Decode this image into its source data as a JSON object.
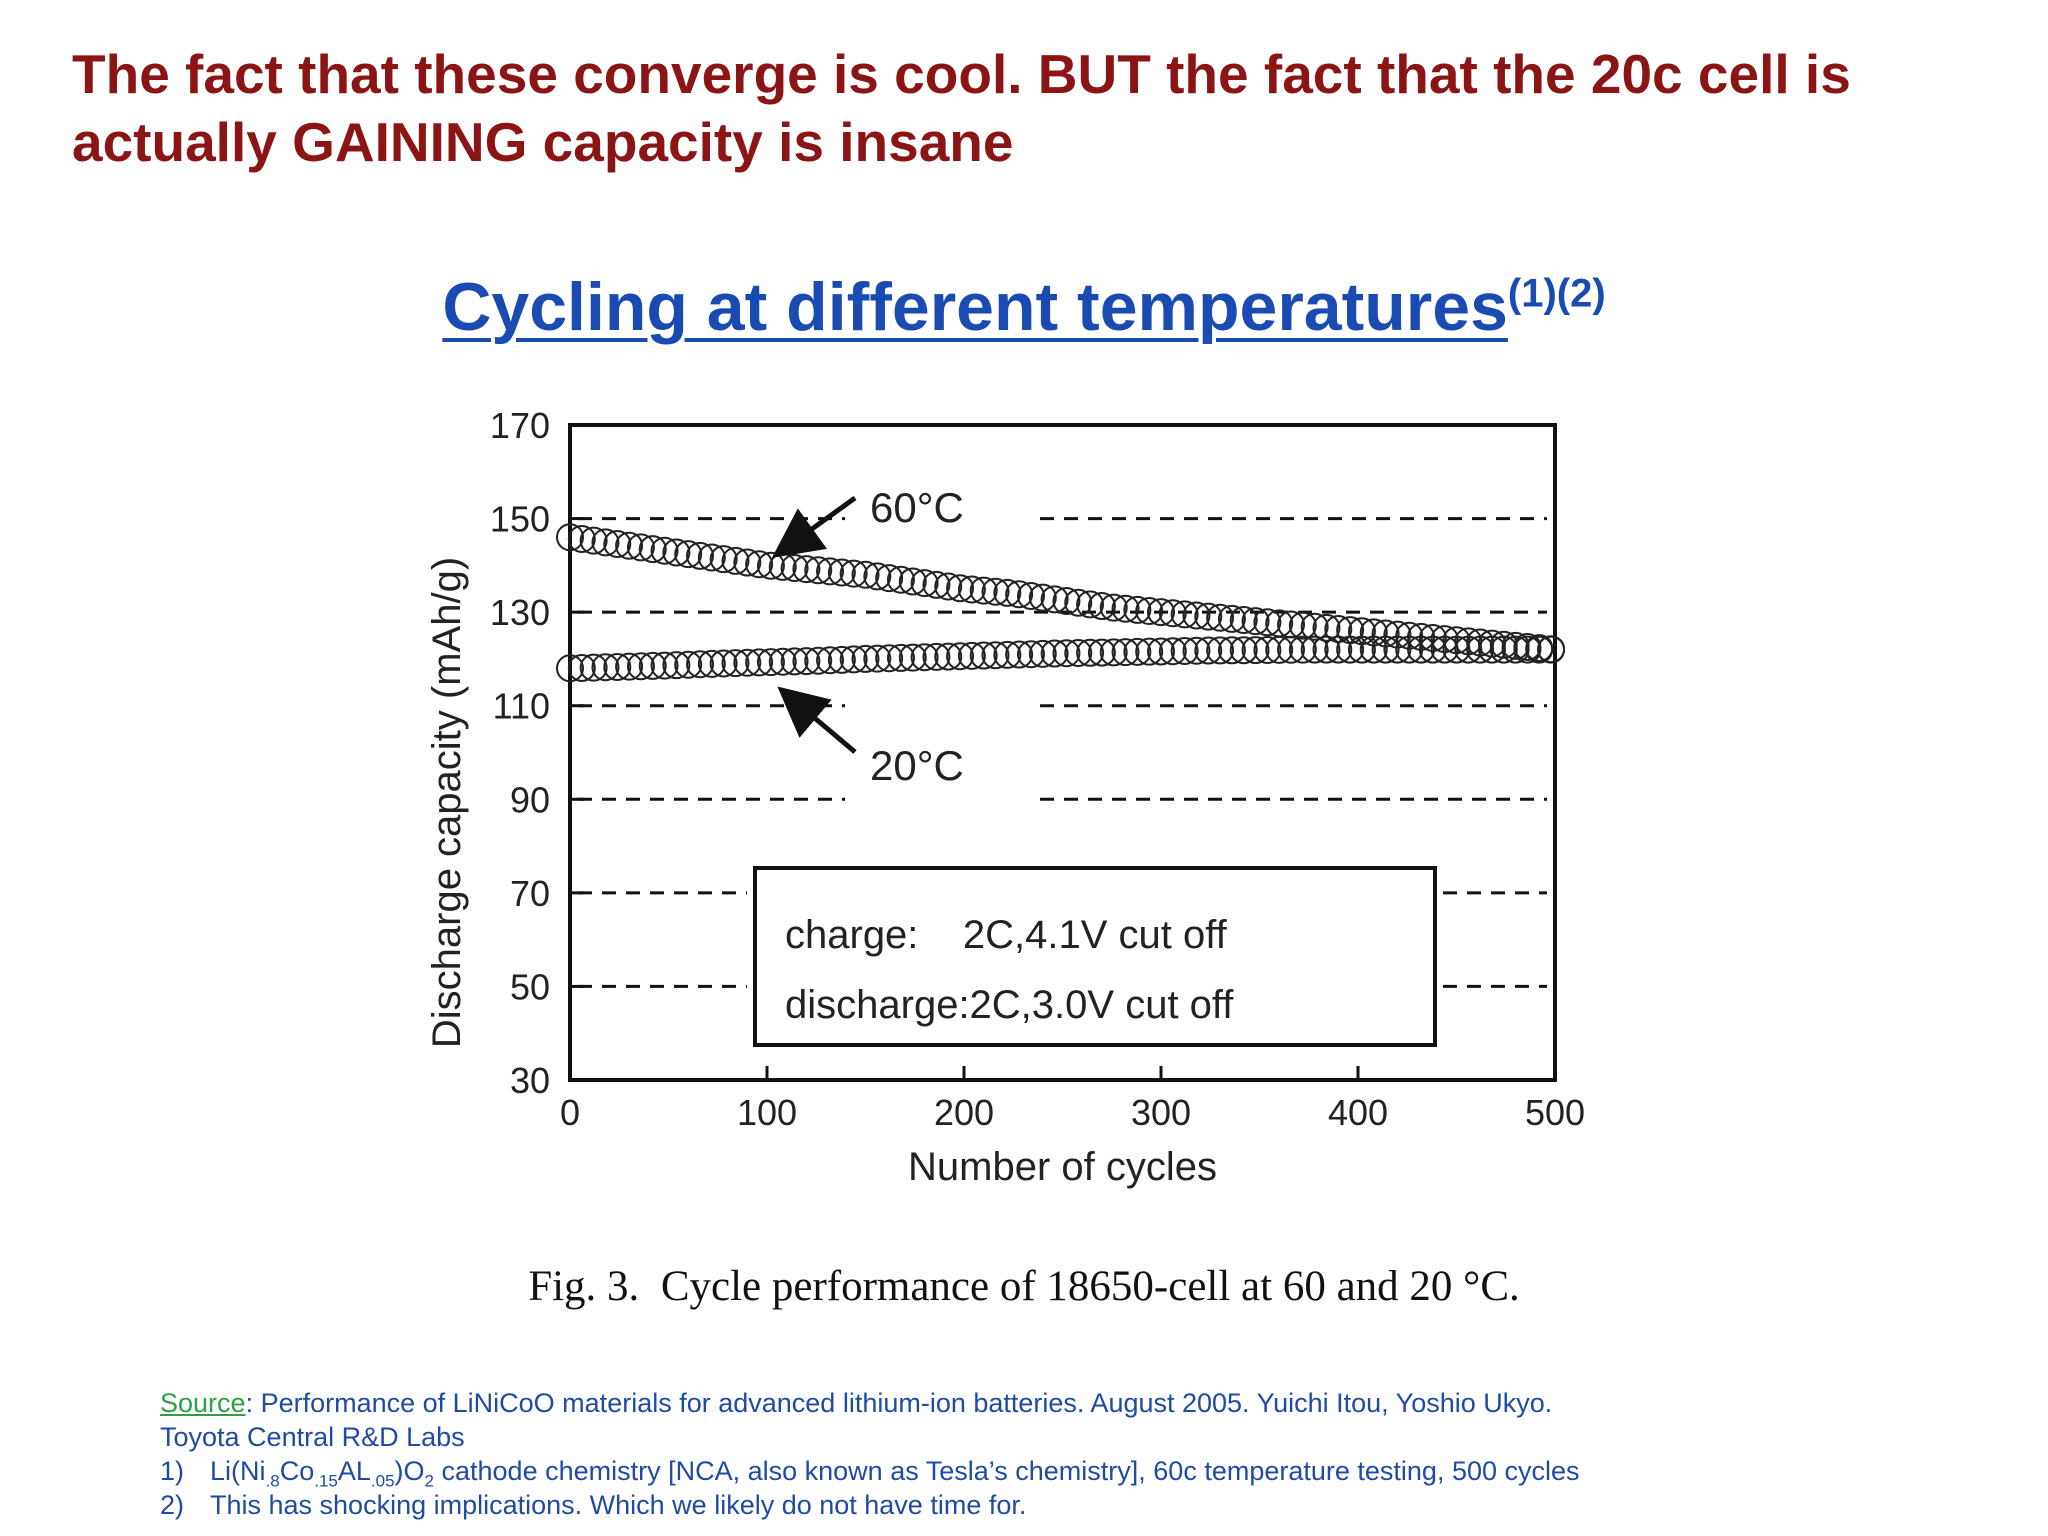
{
  "headline": {
    "line1": "The fact that these converge is cool. BUT the fact that the 20c cell is",
    "line2": "actually GAINING capacity is insane"
  },
  "slide_title": {
    "text": "Cycling at different temperatures",
    "superscript": "(1)(2)"
  },
  "chart_data": {
    "type": "scatter",
    "title": "",
    "xlabel": "Number of cycles",
    "ylabel": "Discharge capacity (mAh/g)",
    "xlim": [
      0,
      500
    ],
    "ylim": [
      30,
      170
    ],
    "xticks": [
      0,
      100,
      200,
      300,
      400,
      500
    ],
    "yticks": [
      30,
      50,
      70,
      90,
      110,
      130,
      150,
      170
    ],
    "grid": "dashed horizontal",
    "marker": "open circle",
    "series": [
      {
        "name": "60°C",
        "x": [
          0,
          25,
          50,
          75,
          100,
          125,
          150,
          175,
          200,
          225,
          250,
          275,
          300,
          325,
          350,
          375,
          400,
          425,
          450,
          475,
          500
        ],
        "values": [
          146,
          144.5,
          143,
          141.5,
          140,
          139,
          138,
          136.5,
          135,
          134,
          132.5,
          131,
          130,
          129,
          128,
          127,
          126,
          125,
          124,
          123,
          122
        ]
      },
      {
        "name": "20°C",
        "x": [
          0,
          25,
          50,
          75,
          100,
          125,
          150,
          175,
          200,
          225,
          250,
          275,
          300,
          325,
          350,
          375,
          400,
          425,
          450,
          475,
          500
        ],
        "values": [
          118,
          118.3,
          118.6,
          119,
          119.3,
          119.6,
          120,
          120.3,
          120.6,
          120.9,
          121.2,
          121.4,
          121.6,
          121.8,
          121.9,
          122,
          122,
          122,
          122,
          122,
          122
        ]
      }
    ],
    "annotations": {
      "label_60": "60°C",
      "label_20": "20°C",
      "conditions_line1": "charge:    2C,4.1V cut off",
      "conditions_line2": "discharge:2C,3.0V cut off"
    }
  },
  "caption": {
    "label": "Fig. 3.",
    "text": "Cycle performance of 18650-cell at 60 and 20 °C."
  },
  "footer": {
    "source_label": "Source",
    "source_text": ": Performance of LiNiCoO materials for advanced lithium-ion batteries. August 2005. Yuichi Itou, Yoshio Ukyo.",
    "source_line2": "Toyota Central R&D Labs",
    "note1_number": "1)",
    "note1_formula": {
      "a": "Li(Ni",
      "a_sub": ".8",
      "b": "Co",
      "b_sub": ".15",
      "c": "AL",
      "c_sub": ".05",
      "d": ")O",
      "d_sub": "2"
    },
    "note1_text": " cathode chemistry [NCA, also known as Tesla’s chemistry], 60c temperature testing, 500 cycles",
    "note2_number": "2)",
    "note2_text": "This has shocking implications. Which we likely do not have time for."
  }
}
